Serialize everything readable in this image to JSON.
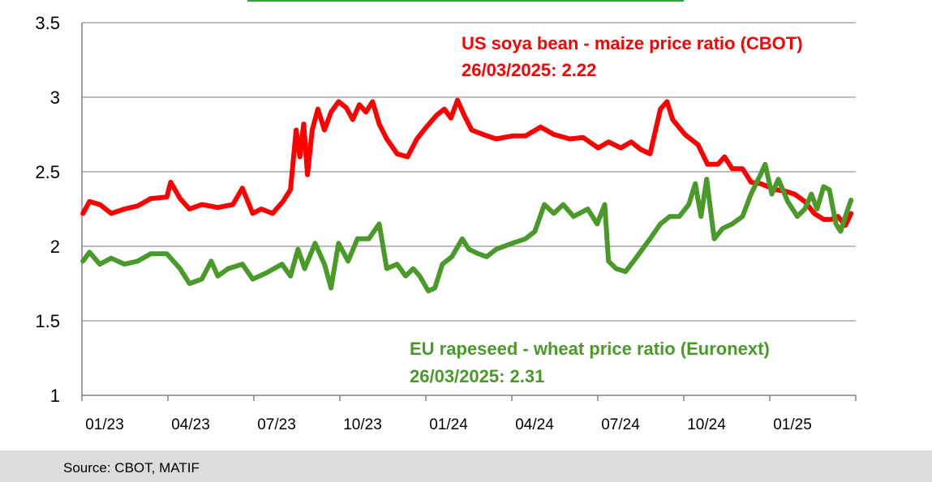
{
  "colors": {
    "soy_maize": "#ff0000",
    "rapeseed_wheat": "#4a9a2a",
    "grid": "#a6a6a6",
    "axis": "#808080",
    "source_bg": "#dcdcdc",
    "top_accent": "#3aa13a"
  },
  "chart_data": {
    "type": "line",
    "title": "",
    "xlabel": "",
    "ylabel": "",
    "ylim": [
      1,
      3.5
    ],
    "yticks": [
      "3.5",
      "3",
      "2.5",
      "2",
      "1.5",
      "1"
    ],
    "xlim": [
      "2023-01-01",
      "2025-03-31"
    ],
    "xtick_labels": [
      "01/23",
      "04/23",
      "07/23",
      "10/23",
      "01/24",
      "04/24",
      "07/24",
      "10/24",
      "01/25"
    ],
    "grid": "horizontal",
    "series": [
      {
        "name": "US soya bean - maize price ratio (CBOT)",
        "annotation": "26/03/2025: 2.22",
        "color": "#ff0000",
        "points": [
          [
            "2023-01-02",
            2.22
          ],
          [
            "2023-01-09",
            2.3
          ],
          [
            "2023-01-20",
            2.28
          ],
          [
            "2023-02-01",
            2.22
          ],
          [
            "2023-02-15",
            2.25
          ],
          [
            "2023-03-01",
            2.27
          ],
          [
            "2023-03-15",
            2.32
          ],
          [
            "2023-04-01",
            2.33
          ],
          [
            "2023-04-05",
            2.43
          ],
          [
            "2023-04-15",
            2.32
          ],
          [
            "2023-04-25",
            2.25
          ],
          [
            "2023-05-08",
            2.28
          ],
          [
            "2023-05-25",
            2.26
          ],
          [
            "2023-06-10",
            2.28
          ],
          [
            "2023-06-20",
            2.39
          ],
          [
            "2023-07-01",
            2.22
          ],
          [
            "2023-07-10",
            2.25
          ],
          [
            "2023-07-22",
            2.22
          ],
          [
            "2023-08-02",
            2.3
          ],
          [
            "2023-08-10",
            2.38
          ],
          [
            "2023-08-16",
            2.78
          ],
          [
            "2023-08-20",
            2.6
          ],
          [
            "2023-08-24",
            2.82
          ],
          [
            "2023-08-28",
            2.48
          ],
          [
            "2023-09-02",
            2.78
          ],
          [
            "2023-09-08",
            2.92
          ],
          [
            "2023-09-15",
            2.78
          ],
          [
            "2023-09-22",
            2.9
          ],
          [
            "2023-09-30",
            2.97
          ],
          [
            "2023-10-08",
            2.93
          ],
          [
            "2023-10-15",
            2.85
          ],
          [
            "2023-10-22",
            2.95
          ],
          [
            "2023-10-29",
            2.9
          ],
          [
            "2023-11-05",
            2.97
          ],
          [
            "2023-11-12",
            2.82
          ],
          [
            "2023-11-20",
            2.72
          ],
          [
            "2023-12-01",
            2.62
          ],
          [
            "2023-12-12",
            2.6
          ],
          [
            "2023-12-22",
            2.72
          ],
          [
            "2024-01-01",
            2.8
          ],
          [
            "2024-01-12",
            2.88
          ],
          [
            "2024-01-20",
            2.92
          ],
          [
            "2024-01-27",
            2.86
          ],
          [
            "2024-02-03",
            2.98
          ],
          [
            "2024-02-10",
            2.88
          ],
          [
            "2024-02-18",
            2.78
          ],
          [
            "2024-03-01",
            2.75
          ],
          [
            "2024-03-15",
            2.72
          ],
          [
            "2024-04-01",
            2.74
          ],
          [
            "2024-04-15",
            2.74
          ],
          [
            "2024-05-01",
            2.8
          ],
          [
            "2024-05-15",
            2.75
          ],
          [
            "2024-06-01",
            2.72
          ],
          [
            "2024-06-15",
            2.73
          ],
          [
            "2024-07-01",
            2.66
          ],
          [
            "2024-07-12",
            2.7
          ],
          [
            "2024-07-25",
            2.66
          ],
          [
            "2024-08-05",
            2.7
          ],
          [
            "2024-08-15",
            2.65
          ],
          [
            "2024-08-25",
            2.62
          ],
          [
            "2024-09-05",
            2.92
          ],
          [
            "2024-09-12",
            2.97
          ],
          [
            "2024-09-18",
            2.85
          ],
          [
            "2024-10-01",
            2.75
          ],
          [
            "2024-10-15",
            2.68
          ],
          [
            "2024-10-25",
            2.55
          ],
          [
            "2024-11-05",
            2.55
          ],
          [
            "2024-11-12",
            2.6
          ],
          [
            "2024-11-20",
            2.52
          ],
          [
            "2024-12-01",
            2.52
          ],
          [
            "2024-12-10",
            2.43
          ],
          [
            "2024-12-20",
            2.42
          ],
          [
            "2025-01-05",
            2.38
          ],
          [
            "2025-01-15",
            2.37
          ],
          [
            "2025-01-25",
            2.35
          ],
          [
            "2025-02-05",
            2.3
          ],
          [
            "2025-02-15",
            2.22
          ],
          [
            "2025-02-25",
            2.18
          ],
          [
            "2025-03-05",
            2.18
          ],
          [
            "2025-03-12",
            2.2
          ],
          [
            "2025-03-20",
            2.14
          ],
          [
            "2025-03-26",
            2.22
          ]
        ]
      },
      {
        "name": "EU rapeseed - wheat price ratio (Euronext)",
        "annotation": "26/03/2025: 2.31",
        "color": "#4a9a2a",
        "points": [
          [
            "2023-01-02",
            1.9
          ],
          [
            "2023-01-09",
            1.96
          ],
          [
            "2023-01-20",
            1.88
          ],
          [
            "2023-02-01",
            1.92
          ],
          [
            "2023-02-15",
            1.88
          ],
          [
            "2023-03-01",
            1.9
          ],
          [
            "2023-03-15",
            1.95
          ],
          [
            "2023-04-01",
            1.95
          ],
          [
            "2023-04-15",
            1.85
          ],
          [
            "2023-04-25",
            1.75
          ],
          [
            "2023-05-08",
            1.78
          ],
          [
            "2023-05-18",
            1.9
          ],
          [
            "2023-05-25",
            1.8
          ],
          [
            "2023-06-05",
            1.85
          ],
          [
            "2023-06-20",
            1.88
          ],
          [
            "2023-07-01",
            1.78
          ],
          [
            "2023-07-15",
            1.82
          ],
          [
            "2023-08-01",
            1.88
          ],
          [
            "2023-08-10",
            1.8
          ],
          [
            "2023-08-18",
            1.98
          ],
          [
            "2023-08-25",
            1.85
          ],
          [
            "2023-09-05",
            2.02
          ],
          [
            "2023-09-15",
            1.88
          ],
          [
            "2023-09-22",
            1.72
          ],
          [
            "2023-09-30",
            2.02
          ],
          [
            "2023-10-10",
            1.9
          ],
          [
            "2023-10-20",
            2.05
          ],
          [
            "2023-11-01",
            2.05
          ],
          [
            "2023-11-12",
            2.15
          ],
          [
            "2023-11-20",
            1.85
          ],
          [
            "2023-12-01",
            1.88
          ],
          [
            "2023-12-10",
            1.8
          ],
          [
            "2023-12-18",
            1.85
          ],
          [
            "2023-12-25",
            1.8
          ],
          [
            "2024-01-03",
            1.7
          ],
          [
            "2024-01-10",
            1.72
          ],
          [
            "2024-01-18",
            1.88
          ],
          [
            "2024-01-28",
            1.93
          ],
          [
            "2024-02-08",
            2.05
          ],
          [
            "2024-02-15",
            1.98
          ],
          [
            "2024-02-25",
            1.95
          ],
          [
            "2024-03-05",
            1.93
          ],
          [
            "2024-03-15",
            1.98
          ],
          [
            "2024-04-01",
            2.02
          ],
          [
            "2024-04-15",
            2.05
          ],
          [
            "2024-04-25",
            2.1
          ],
          [
            "2024-05-05",
            2.28
          ],
          [
            "2024-05-15",
            2.22
          ],
          [
            "2024-05-25",
            2.28
          ],
          [
            "2024-06-05",
            2.2
          ],
          [
            "2024-06-20",
            2.25
          ],
          [
            "2024-06-30",
            2.15
          ],
          [
            "2024-07-08",
            2.28
          ],
          [
            "2024-07-12",
            1.9
          ],
          [
            "2024-07-20",
            1.85
          ],
          [
            "2024-07-30",
            1.83
          ],
          [
            "2024-08-10",
            1.92
          ],
          [
            "2024-08-25",
            2.05
          ],
          [
            "2024-09-05",
            2.15
          ],
          [
            "2024-09-15",
            2.2
          ],
          [
            "2024-09-25",
            2.2
          ],
          [
            "2024-10-05",
            2.28
          ],
          [
            "2024-10-12",
            2.42
          ],
          [
            "2024-10-18",
            2.2
          ],
          [
            "2024-10-24",
            2.45
          ],
          [
            "2024-11-01",
            2.05
          ],
          [
            "2024-11-10",
            2.12
          ],
          [
            "2024-11-20",
            2.15
          ],
          [
            "2024-12-01",
            2.2
          ],
          [
            "2024-12-10",
            2.35
          ],
          [
            "2024-12-20",
            2.48
          ],
          [
            "2024-12-25",
            2.55
          ],
          [
            "2025-01-01",
            2.35
          ],
          [
            "2025-01-08",
            2.45
          ],
          [
            "2025-01-18",
            2.3
          ],
          [
            "2025-01-28",
            2.2
          ],
          [
            "2025-02-05",
            2.25
          ],
          [
            "2025-02-12",
            2.35
          ],
          [
            "2025-02-18",
            2.25
          ],
          [
            "2025-02-25",
            2.4
          ],
          [
            "2025-03-03",
            2.38
          ],
          [
            "2025-03-10",
            2.15
          ],
          [
            "2025-03-15",
            2.1
          ],
          [
            "2025-03-20",
            2.2
          ],
          [
            "2025-03-26",
            2.31
          ]
        ]
      }
    ]
  },
  "source": {
    "label": "Source: CBOT, MATIF"
  }
}
